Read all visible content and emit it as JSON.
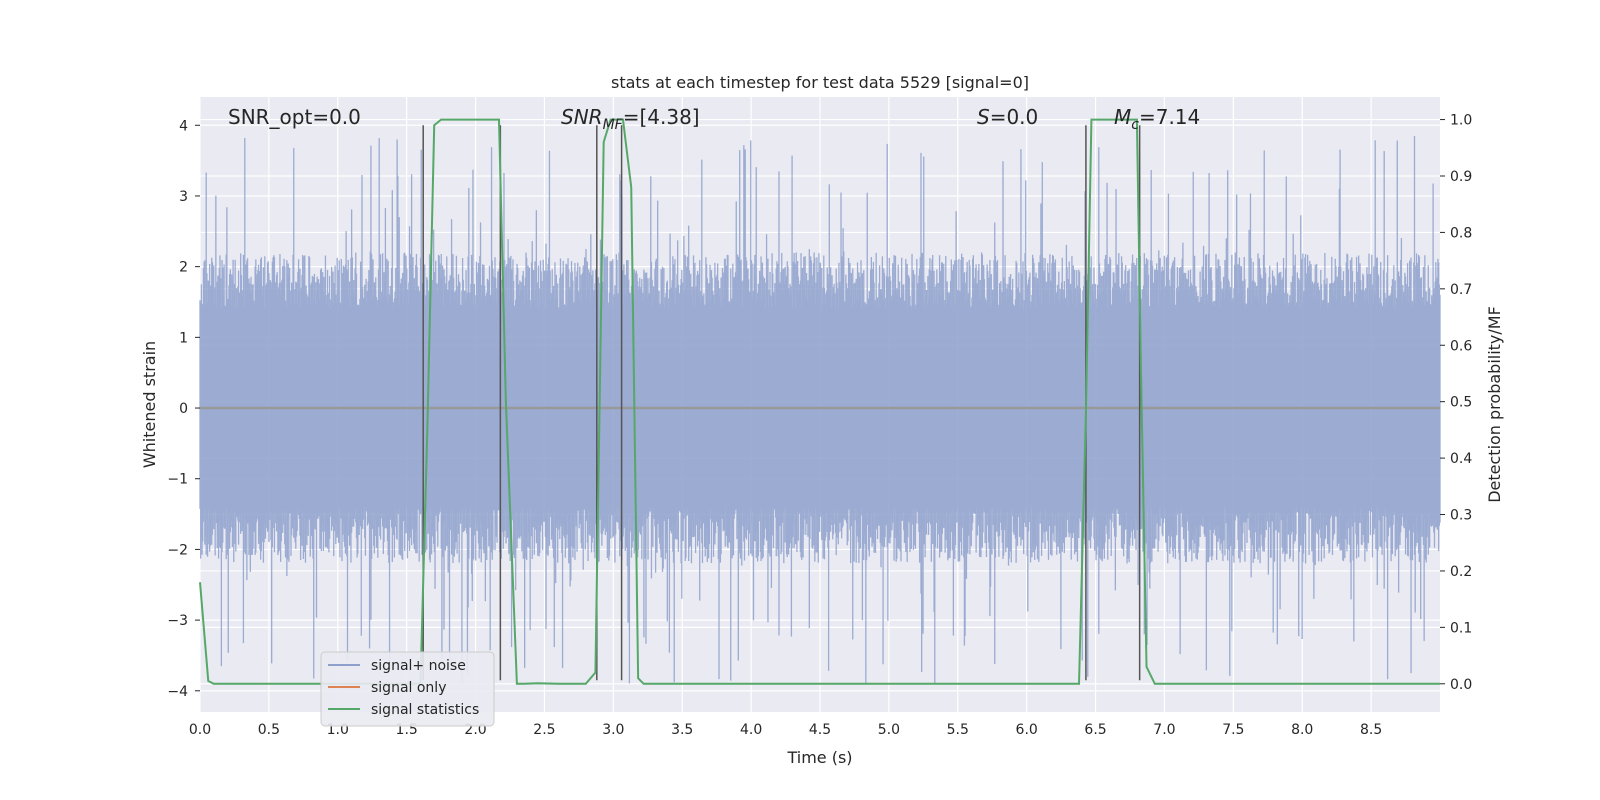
{
  "chart_data": {
    "type": "line",
    "title": "stats at each timestep for test data 5529 [signal=0]",
    "xlabel": "Time (s)",
    "ylabel": "Whitened strain",
    "ylabel_right": "Detection probability/MF",
    "xlim": [
      0.0,
      9.0
    ],
    "ylim": [
      -4.3,
      4.4
    ],
    "ylim_right": [
      -0.05,
      1.04
    ],
    "x_ticks": [
      "0.0",
      "0.5",
      "1.0",
      "1.5",
      "2.0",
      "2.5",
      "3.0",
      "3.5",
      "4.0",
      "4.5",
      "5.0",
      "5.5",
      "6.0",
      "6.5",
      "7.0",
      "7.5",
      "8.0",
      "8.5"
    ],
    "y_ticks": [
      "4",
      "3",
      "2",
      "1",
      "0",
      "−1",
      "−2",
      "−3",
      "−4"
    ],
    "y_ticks_right": [
      "1.0",
      "0.9",
      "0.8",
      "0.7",
      "0.6",
      "0.5",
      "0.4",
      "0.3",
      "0.2",
      "0.1",
      "0.0"
    ],
    "grid": true,
    "legend_placement": "lower-left",
    "legend": [
      "signal+ noise",
      "signal only",
      "signal statistics"
    ],
    "colors": {
      "signal_noise": "#8da0cb",
      "signal_only": "#dd8452",
      "signal_statistics": "#55a868",
      "background": "#eaeaf2",
      "grid": "#ffffff",
      "vline": "#555555"
    },
    "annotations": {
      "snr_opt": "SNR_opt=0.0",
      "snr_mf_main": "SNR",
      "snr_mf_sub": "MF",
      "snr_mf_value": "=[4.38]",
      "s_main": "S",
      "s_value": "=0.0",
      "mc_main": "M",
      "mc_sub": "c",
      "mc_value": "=7.14"
    },
    "noise_series": {
      "name": "signal+ noise",
      "x_range": [
        0.0,
        9.0
      ],
      "samples": 1800,
      "typical_peak": 2.2,
      "max_peak": 3.9
    },
    "vertical_lines_x": [
      1.62,
      2.18,
      2.88,
      3.06,
      6.43,
      6.82
    ],
    "series": [
      {
        "name": "signal statistics",
        "axis": "right",
        "x": [
          0.0,
          0.06,
          0.1,
          0.15,
          0.5,
          1.0,
          1.5,
          1.6,
          1.65,
          1.7,
          1.75,
          1.85,
          2.0,
          2.1,
          2.17,
          2.22,
          2.3,
          2.35,
          2.45,
          2.6,
          2.8,
          2.87,
          2.93,
          2.98,
          3.03,
          3.07,
          3.13,
          3.18,
          3.22,
          3.5,
          4.0,
          5.0,
          6.0,
          6.38,
          6.43,
          6.47,
          6.55,
          6.7,
          6.8,
          6.83,
          6.87,
          6.93,
          7.0,
          8.0,
          9.0
        ],
        "y": [
          0.18,
          0.005,
          0.0,
          0.0,
          0.0,
          0.0,
          0.0,
          0.0,
          0.45,
          0.99,
          1.0,
          1.0,
          1.0,
          1.0,
          1.0,
          0.5,
          0.0,
          0.0,
          0.001,
          0.0,
          0.0,
          0.02,
          0.96,
          1.0,
          1.0,
          1.0,
          0.88,
          0.01,
          0.0,
          0.0,
          0.0,
          0.0,
          0.0,
          0.0,
          0.48,
          1.0,
          1.0,
          1.0,
          1.0,
          0.55,
          0.03,
          0.0,
          0.0,
          0.0,
          0.0
        ]
      },
      {
        "name": "signal only",
        "axis": "left",
        "x": [
          0.0,
          9.0
        ],
        "y": [
          0.0,
          0.0
        ]
      }
    ]
  }
}
